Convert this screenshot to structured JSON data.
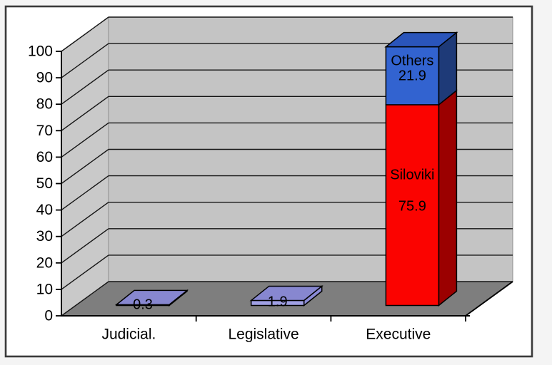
{
  "chart_data": {
    "type": "bar",
    "subtype": "3d-stacked-column",
    "title": "",
    "legend": "none",
    "grid": true,
    "categories": [
      "Judicial.",
      "Legislative",
      "Executive"
    ],
    "series": [
      {
        "name": "Siloviki",
        "values": [
          0.3,
          1.9,
          75.9
        ]
      },
      {
        "name": "Others",
        "values": [
          0,
          0,
          21.9
        ]
      }
    ],
    "y_axis": {
      "min": 0,
      "max": 100,
      "step": 10,
      "tick_labels": [
        "0",
        "10",
        "20",
        "30",
        "40",
        "50",
        "60",
        "70",
        "80",
        "90",
        "100"
      ]
    },
    "bars": [
      {
        "category": "Judicial.",
        "segments": [
          {
            "value": 0.3,
            "value_label": "0.3",
            "value_dy": 0,
            "colors": {
              "front": "#A0A0E4",
              "side": "#8B8BD6",
              "top": "#8787D0"
            }
          }
        ]
      },
      {
        "category": "Legislative",
        "segments": [
          {
            "value": 1.9,
            "value_label": "1.9",
            "value_dy": 2,
            "colors": {
              "front": "#A0A0E4",
              "side": "#8B8BD6",
              "top": "#8787D0"
            }
          }
        ]
      },
      {
        "category": "Executive",
        "segments": [
          {
            "name": "Siloviki",
            "value": 75.9,
            "value_label": "75.9",
            "name_dy": -42,
            "value_dy": 2,
            "colors": {
              "front": "#FB0300",
              "side": "#9B0000",
              "top": "#C00000"
            }
          },
          {
            "name": "Others",
            "value": 21.9,
            "value_label": "21.9",
            "name_dy": -21,
            "value_dy": 0,
            "colors": {
              "front": "#3263D0",
              "side": "#1E3A78",
              "top": "#2A55BB"
            }
          }
        ]
      }
    ],
    "colors": {
      "page_bg": "#F4F4F4",
      "canvas": "#FFFFFF",
      "border": "#3A3A3A",
      "wall_left": "#C9C9C9",
      "wall_back": "#C4C4C4",
      "floor": "#7E7E7E",
      "gridline": "#151515",
      "axis": "#000000",
      "text": "#000000"
    }
  }
}
